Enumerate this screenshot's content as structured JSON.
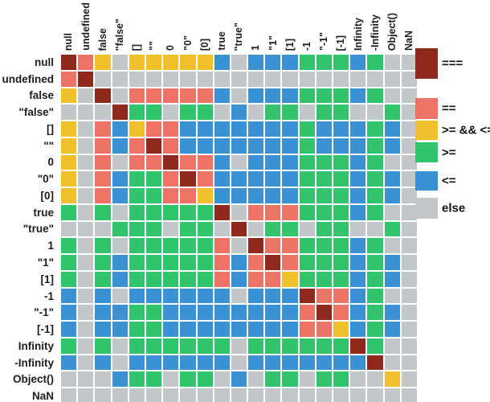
{
  "chart_data": {
    "type": "heatmap",
    "description_visible_text_only": true,
    "x_labels": [
      "null",
      "undefined",
      "false",
      "\"false\"",
      "[]",
      "\"\"",
      "0",
      "\"0\"",
      "[0]",
      "true",
      "\"true\"",
      "1",
      "\"1\"",
      "[1]",
      "-1",
      "\"-1\"",
      "[-1]",
      "Infinity",
      "-Infinity",
      "Object()",
      "NaN"
    ],
    "y_labels": [
      "null",
      "undefined",
      "false",
      "\"false\"",
      "[]",
      "\"\"",
      "0",
      "\"0\"",
      "[0]",
      "true",
      "\"true\"",
      "1",
      "\"1\"",
      "[1]",
      "-1",
      "\"-1\"",
      "[-1]",
      "Infinity",
      "-Infinity",
      "Object()",
      "NaN"
    ],
    "cell_codes_by_row": [
      "DSYXYYYYYBXBBBGGGBGXX",
      "SDXXXXXXXXXXXXXXXXXXX",
      "YXDXSSSSSBXBBBGGGBGXX",
      "XXXDGGXGGXBXGGXGGXXGX",
      "YXSBYSSBBBBBBBGBBBGBX",
      "YXSBSDSBBBBBBBGBBBGBX",
      "YXSXSSDSSBXBBBGGGBGXX",
      "YXSBGGSDSBBBBBGGGBGBX",
      "YXSBGGSSYBBBBBGGGBGBX",
      "GXGXGGGGGDXSSSGGGBGXX",
      "XXXGGGXGGXDXGGXGGXXGX",
      "GXGXGGGGGSXDSSGGGBGXX",
      "GXGBGGGGGSBSDSGGGBGBX",
      "GXGBGGGGGSBSSYGGGBGBX",
      "BXBXBBBBBBXBBBDSSBGXX",
      "BXBBGGBBBBBBBBSDSBGBX",
      "BXBBGGBBBBBBBBSSYBGBX",
      "GXGXGGGGGGXGGGGGGDGXX",
      "BXBXBBBBBBXBBBBBBBDXX",
      "XXXBGGXGGXBXGGXGGXXYX",
      "XXXXXXXXXXXXXXXXXXXXX"
    ],
    "legend": [
      {
        "code": "D",
        "label": "===",
        "color": "#8f291d"
      },
      {
        "code": "S",
        "label": "==",
        "color": "#ec7365"
      },
      {
        "code": "Y",
        "label": ">= && <=",
        "color": "#f0c12d"
      },
      {
        "code": "G",
        "label": ">=",
        "color": "#31c46d"
      },
      {
        "code": "B",
        "label": "<=",
        "color": "#3a92d4"
      },
      {
        "code": "X",
        "label": "else",
        "color": "#c4c7ca"
      }
    ],
    "legend_position": "right",
    "grid_gap_color": "#ffffff"
  }
}
